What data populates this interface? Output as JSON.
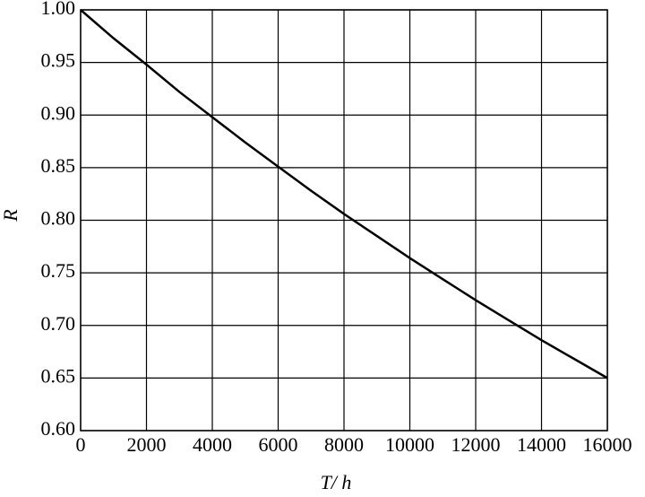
{
  "chart_data": {
    "type": "line",
    "x_label": "T/ h",
    "y_label": "R",
    "x": [
      0,
      1000,
      2000,
      3000,
      4000,
      5000,
      6000,
      7000,
      8000,
      9000,
      10000,
      11000,
      12000,
      13000,
      14000,
      15000,
      16000
    ],
    "series": [
      {
        "color": "#000000",
        "values": [
          1.0,
          0.973,
          0.948,
          0.922,
          0.898,
          0.874,
          0.851,
          0.828,
          0.806,
          0.785,
          0.764,
          0.744,
          0.724,
          0.705,
          0.686,
          0.668,
          0.65
        ]
      }
    ],
    "xlim": [
      0,
      16000
    ],
    "xticks": [
      0,
      2000,
      4000,
      6000,
      8000,
      10000,
      12000,
      14000,
      16000
    ],
    "ylim": [
      0.6,
      1.0
    ],
    "yticks": [
      {
        "value": 0.6,
        "label": "0.60"
      },
      0.65,
      {
        "value": 0.7,
        "label": "0.70"
      },
      0.75,
      {
        "value": 0.8,
        "label": "0.80"
      },
      0.85,
      {
        "value": 0.9,
        "label": "0.90"
      },
      0.95,
      {
        "value": 1.0,
        "label": "1.00"
      }
    ],
    "grid": true
  }
}
